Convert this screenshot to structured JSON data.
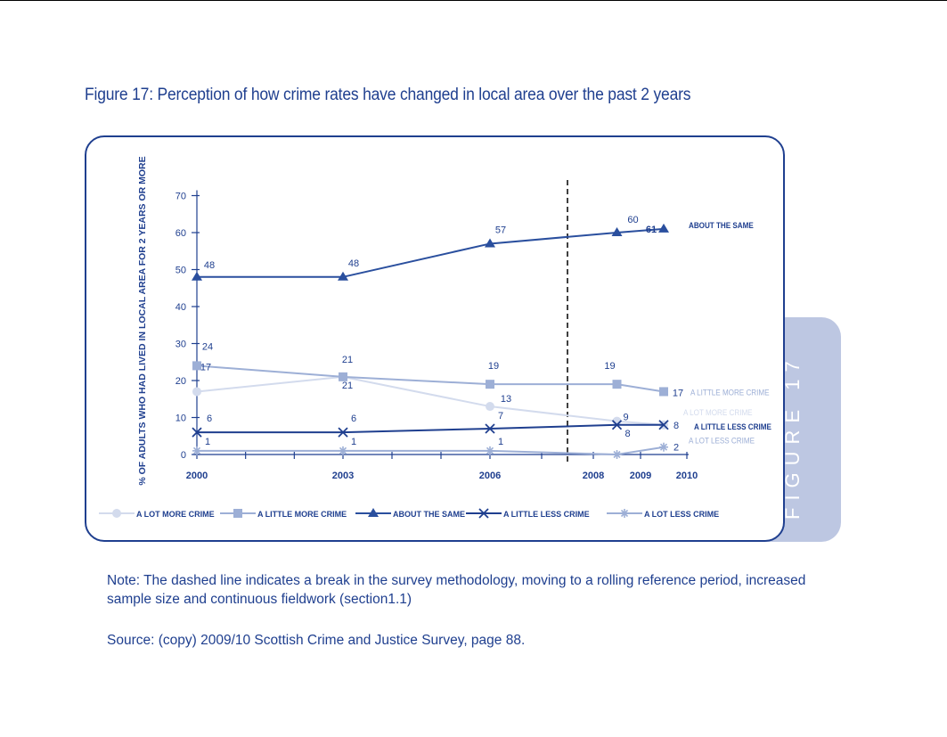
{
  "figure": {
    "title": "Figure 17: Perception of how crime rates have changed in local area over the past 2 years",
    "tab_label": "FIGURE 17",
    "note": "Note: The dashed line indicates a break in the survey methodology, moving to a rolling reference period, increased sample size and continuous fieldwork (section1.1)",
    "source": "Source: (copy) 2009/10 Scottish Crime and Justice Survey, page 88."
  },
  "chart_data": {
    "type": "line",
    "ylabel": "% OF ADULTS WHO HAD LIVED IN LOCAL AREA FOR 2 YEARS OR MORE",
    "ylim": [
      0,
      70
    ],
    "yticks": [
      0,
      10,
      20,
      30,
      40,
      50,
      60,
      70
    ],
    "xticks": [
      "2000",
      "2003",
      "2006",
      "2008",
      "2009",
      "2010"
    ],
    "grid": false,
    "legend_position": "bottom",
    "break_line_x": 2007.5,
    "series": [
      {
        "name": "A LOT MORE CRIME",
        "end_label": "A LOT MORE CRIME",
        "color": "#d3dbed",
        "marker": "circle",
        "points": [
          {
            "x": 2000,
            "y": 17,
            "label": "17"
          },
          {
            "x": 2003,
            "y": 21,
            "label": "21"
          },
          {
            "x": 2006,
            "y": 13,
            "label": "13"
          },
          {
            "x": 2008.5,
            "y": 9,
            "label": "9"
          },
          {
            "x": 2009.5,
            "y": 8,
            "label": ""
          }
        ]
      },
      {
        "name": "A LITTLE MORE CRIME",
        "end_label": "A LITTLE MORE CRIME",
        "color": "#9dafd6",
        "marker": "square",
        "points": [
          {
            "x": 2000,
            "y": 24,
            "label": "24"
          },
          {
            "x": 2003,
            "y": 21,
            "label": "21"
          },
          {
            "x": 2006,
            "y": 19,
            "label": "19"
          },
          {
            "x": 2008.5,
            "y": 19,
            "label": "19"
          },
          {
            "x": 2009.5,
            "y": 17,
            "label": "17"
          }
        ]
      },
      {
        "name": "ABOUT THE SAME",
        "end_label": "ABOUT THE SAME",
        "color": "#2a4f9e",
        "marker": "triangle",
        "points": [
          {
            "x": 2000,
            "y": 48,
            "label": "48"
          },
          {
            "x": 2003,
            "y": 48,
            "label": "48"
          },
          {
            "x": 2006,
            "y": 57,
            "label": "57"
          },
          {
            "x": 2008.5,
            "y": 60,
            "label": "60"
          },
          {
            "x": 2009.5,
            "y": 61,
            "label": "61"
          }
        ]
      },
      {
        "name": "A LITTLE LESS CRIME",
        "end_label": "A LITTLE LESS CRIME",
        "color": "#1f3f8f",
        "marker": "x",
        "points": [
          {
            "x": 2000,
            "y": 6,
            "label": "6"
          },
          {
            "x": 2003,
            "y": 6,
            "label": "6"
          },
          {
            "x": 2006,
            "y": 7,
            "label": "7"
          },
          {
            "x": 2008.5,
            "y": 8,
            "label": "8"
          },
          {
            "x": 2009.5,
            "y": 8,
            "label": "8"
          }
        ]
      },
      {
        "name": "A LOT LESS CRIME",
        "end_label": "A LOT LESS CRIME",
        "color": "#9dafd6",
        "marker": "asterisk",
        "points": [
          {
            "x": 2000,
            "y": 1,
            "label": "1"
          },
          {
            "x": 2003,
            "y": 1,
            "label": "1"
          },
          {
            "x": 2006,
            "y": 1,
            "label": "1"
          },
          {
            "x": 2008.5,
            "y": 0,
            "label": ""
          },
          {
            "x": 2009.5,
            "y": 2,
            "label": "2"
          }
        ]
      }
    ]
  }
}
